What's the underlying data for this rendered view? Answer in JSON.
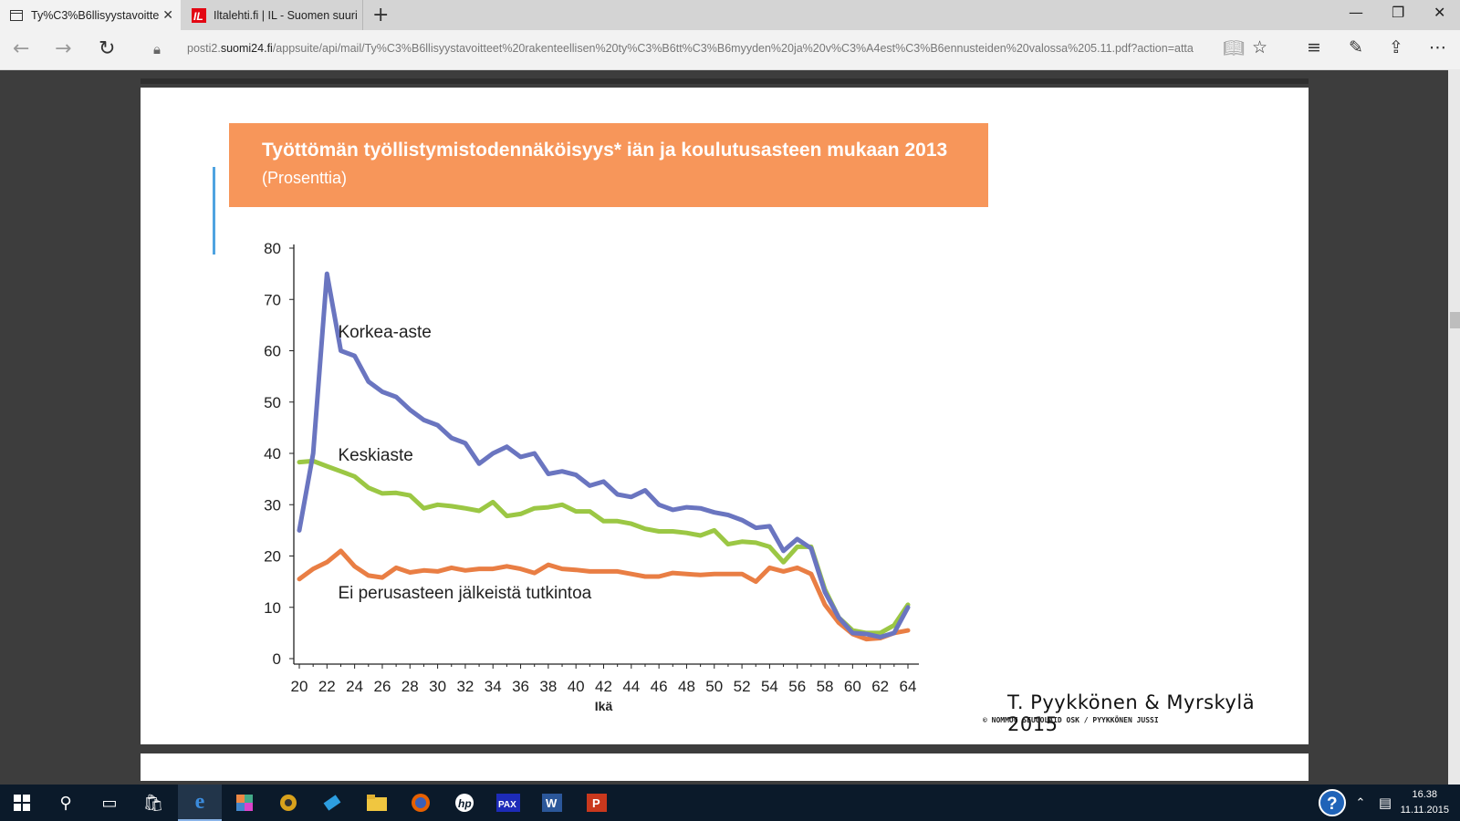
{
  "browser": {
    "tabs": [
      {
        "label": "Ty%C3%B6llisyystavoitte",
        "active": true
      },
      {
        "label": "Iltalehti.fi | IL - Suomen suuri",
        "active": false
      }
    ],
    "url_prefix": "posti2.",
    "url_domain": "suomi24.fi",
    "url_rest": "/appsuite/api/mail/Ty%C3%B6llisyystavoitteet%20rakenteellisen%20ty%C3%B6tt%C3%B6myyden%20ja%20v%C3%A4est%C3%B6ennusteiden%20valossa%205.11.pdf?action=atta"
  },
  "figure": {
    "title": "Työttömän työllistymistodennäköisyys* iän ja koulutusasteen mukaan 2013",
    "subtitle": "(Prosenttia)",
    "credit": "T. Pyykkönen & Myrskylä 2015",
    "credit_small": "© NOMMOC SEUGOLAID OSK /  PYYKKÖNEN JUSSI",
    "title_bg": "#f7965a"
  },
  "chart_data": {
    "type": "line",
    "xlabel": "Ikä",
    "ylabel": "",
    "x": [
      20,
      21,
      22,
      23,
      24,
      25,
      26,
      27,
      28,
      29,
      30,
      31,
      32,
      33,
      34,
      35,
      36,
      37,
      38,
      39,
      40,
      41,
      42,
      43,
      44,
      45,
      46,
      47,
      48,
      49,
      50,
      51,
      52,
      53,
      54,
      55,
      56,
      57,
      58,
      59,
      60,
      61,
      62,
      63,
      64
    ],
    "xticks": [
      20,
      22,
      24,
      26,
      28,
      30,
      32,
      34,
      36,
      38,
      40,
      42,
      44,
      46,
      48,
      50,
      52,
      54,
      56,
      58,
      60,
      62,
      64
    ],
    "yticks": [
      0,
      10,
      20,
      30,
      40,
      50,
      60,
      70,
      80
    ],
    "ylim": [
      0,
      80
    ],
    "xlim": [
      20,
      64
    ],
    "grid": false,
    "series": [
      {
        "name": "Korkea-aste",
        "color": "#6a75c0",
        "values": [
          25,
          40,
          75,
          60,
          59,
          54,
          52,
          51,
          48.5,
          46.5,
          45.5,
          43,
          42,
          38,
          40,
          41.3,
          39.3,
          40,
          36,
          36.5,
          35.8,
          33.7,
          34.5,
          32,
          31.5,
          32.8,
          30,
          29,
          29.5,
          29.3,
          28.5,
          28,
          27,
          25.5,
          25.8,
          21,
          23.3,
          21.5,
          13,
          8,
          5,
          4.8,
          4.2,
          5,
          10
        ]
      },
      {
        "name": "Keskiaste",
        "color": "#9bc744",
        "values": [
          38.3,
          38.5,
          37.5,
          36.5,
          35.5,
          33.3,
          32.2,
          32.3,
          31.8,
          29.3,
          30,
          29.7,
          29.3,
          28.8,
          30.5,
          27.8,
          28.2,
          29.3,
          29.5,
          30,
          28.7,
          28.7,
          26.8,
          26.8,
          26.3,
          25.3,
          24.8,
          24.8,
          24.5,
          24,
          25,
          22.3,
          22.8,
          22.6,
          21.8,
          18.8,
          21.8,
          21.8,
          13.5,
          8,
          5.5,
          5,
          5,
          6.5,
          10.5
        ]
      },
      {
        "name": "Ei perusasteen jälkeistä tutkintoa",
        "color": "#e97e44",
        "values": [
          15.5,
          17.5,
          18.8,
          21,
          18,
          16.2,
          15.8,
          17.7,
          16.8,
          17.2,
          17,
          17.7,
          17.2,
          17.5,
          17.5,
          18,
          17.5,
          16.7,
          18.3,
          17.5,
          17.3,
          17,
          17,
          17,
          16.5,
          16,
          16,
          16.7,
          16.5,
          16.3,
          16.5,
          16.5,
          16.5,
          15,
          17.7,
          17,
          17.7,
          16.5,
          10.5,
          7,
          4.8,
          3.8,
          4,
          5,
          5.5
        ]
      }
    ],
    "annotations": [
      {
        "text": "Korkea-aste"
      },
      {
        "text": "Keskiaste"
      },
      {
        "text": "Ei perusasteen jälkeistä tutkintoa"
      }
    ]
  },
  "taskbar": {
    "time": "16.38",
    "date": "11.11.2015"
  }
}
